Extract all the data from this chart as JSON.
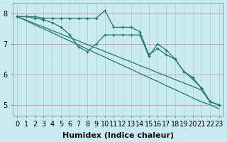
{
  "xlabel": "Humidex (Indice chaleur)",
  "ylabel": "",
  "background_color": "#c8eaf0",
  "grid_color": "#a8d0d0",
  "line_color": "#1a7a6e",
  "x_ticks": [
    0,
    1,
    2,
    3,
    4,
    5,
    6,
    7,
    8,
    9,
    10,
    11,
    12,
    13,
    14,
    15,
    16,
    17,
    18,
    19,
    20,
    21,
    22,
    23
  ],
  "y_ticks": [
    5,
    6,
    7,
    8
  ],
  "ylim": [
    4.65,
    8.35
  ],
  "xlim": [
    -0.5,
    23.5
  ],
  "series": [
    {
      "x": [
        0,
        1,
        2,
        3,
        4,
        5,
        6,
        7,
        8,
        9,
        10,
        11,
        12,
        13,
        14,
        15,
        16,
        17,
        18,
        19,
        20,
        21,
        22,
        23
      ],
      "y": [
        7.9,
        7.9,
        7.9,
        7.85,
        7.85,
        7.85,
        7.85,
        7.85,
        7.85,
        7.85,
        8.1,
        7.55,
        7.55,
        7.55,
        7.4,
        6.65,
        6.85,
        6.65,
        6.5,
        6.1,
        5.85,
        5.55,
        5.1,
        5.0
      ],
      "marker": "+"
    },
    {
      "x": [
        0,
        1,
        2,
        3,
        4,
        5,
        6,
        7,
        8,
        9,
        10,
        11,
        12,
        13,
        14,
        15,
        16,
        17,
        18,
        19,
        20,
        21,
        22,
        23
      ],
      "y": [
        7.9,
        7.9,
        7.85,
        7.8,
        7.7,
        7.55,
        7.3,
        6.9,
        6.75,
        7.0,
        7.3,
        7.3,
        7.3,
        7.3,
        7.3,
        6.6,
        7.0,
        6.8,
        6.5,
        6.1,
        5.9,
        5.55,
        5.1,
        5.0
      ],
      "marker": "+"
    },
    {
      "x": [
        0,
        1,
        2,
        3,
        4,
        5,
        6,
        7,
        8,
        9,
        10,
        11,
        12,
        13,
        14,
        15,
        16,
        17,
        18,
        19,
        20,
        21,
        22,
        23
      ],
      "y": [
        7.9,
        7.77,
        7.63,
        7.5,
        7.37,
        7.23,
        7.1,
        6.97,
        6.83,
        6.7,
        6.57,
        6.43,
        6.3,
        6.17,
        6.03,
        5.9,
        5.77,
        5.63,
        5.5,
        5.37,
        5.23,
        5.1,
        5.0,
        4.87
      ],
      "marker": null
    },
    {
      "x": [
        0,
        1,
        2,
        3,
        4,
        5,
        6,
        7,
        8,
        9,
        10,
        11,
        12,
        13,
        14,
        15,
        16,
        17,
        18,
        19,
        20,
        21,
        22,
        23
      ],
      "y": [
        7.9,
        7.79,
        7.67,
        7.56,
        7.44,
        7.33,
        7.21,
        7.1,
        6.98,
        6.87,
        6.75,
        6.64,
        6.52,
        6.41,
        6.29,
        6.18,
        6.06,
        5.95,
        5.83,
        5.72,
        5.6,
        5.49,
        5.1,
        5.0
      ],
      "marker": null
    }
  ],
  "axis_fontsize": 8,
  "tick_fontsize": 7
}
